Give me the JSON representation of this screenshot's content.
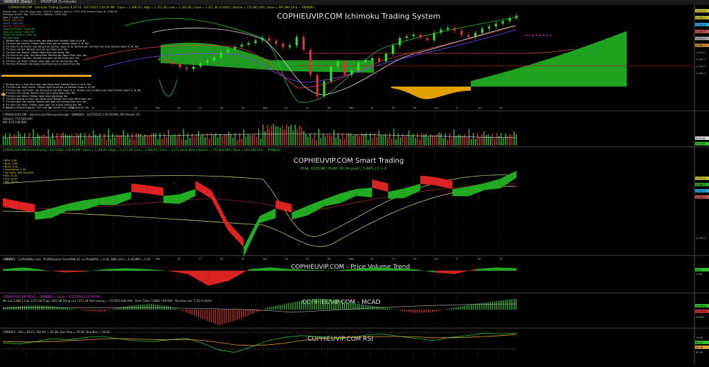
{
  "window": {
    "tabs": [
      {
        "label": "VNINDEX (Daily)",
        "active": true
      },
      {
        "label": "VN30F1M (5-minute)",
        "active": false
      }
    ]
  },
  "panels": {
    "ichimoku": {
      "watermark": "COPHIEUVIP.COM Ichimoku Trading System",
      "header": "COPHIEUVIP.COM - Ichimoku Trading System 8.29.10 - 6/27/2025 2:45:00 PM - Open = 1,368.10 | High = 1,373.28 | Low = 1,362.08 | Close = 1,371.44 (0.40%) | Volume = 715,905,440 | Value = 991,884,19 b — VNINDEX",
      "info_lines": [
        "Tenkan-sen: 1352.60  Kijun-sen: 1331.67  Senkou Span A: 1371.028  Senkou Span B: 1298.26",
        "Bollinger Band's Top: 1378.992 | Bottom: 1305.366",
        "SMA 5: 1340.193",
        "MA20: 1392.312",
        "MA50: 1268.380",
        "MA200: 1270.375",
        "Close At Chikou: 1315.48",
        "Kijun At Chikou: 1262.047",
        "Tenkan At Chikou: 1281.26",
        "Tin hieu Mua",
        "1. Tenkan-sen > hon Kijun-sen, gia dong tren Senkou Span A va B",
        "2. Tin hieu cat nhanh: Chikou Span tren gia va Senkou Span A, B: Yes",
        "3. Tin hieu tu rat manh: Gia dong tren Senkou Span A, B, Tenkan-sen va Kijun-sen tren Senkou Span A, B: Yes",
        "4. Tin hieu cat len: Tenkan-sen cat len Kijun-sen: No",
        "5. Tin hieu cat nhanh: Chikou Span tren gia dong: Yes",
        "6. Tin hieu tu tin yeu: Gia dong tren Tenkan-sen hoac Kijun-sen: Yes",
        "7. Tin hieu gan cat ben: Tenkan-sen gan cat len Kijun-sen: No",
        "8. Tin hieu cat nhan: Chikou Span gan cat len duong gia: No",
        "9. Tin hieu Pullback: Gia quay duoi Kijun-sen va dong tren: No"
      ],
      "sell_lines": [
        "1. Tenkan-sen < duoi Kijun-sen, gia dong duoi Senkou Span A va B: No",
        "2. Tin hieu cat nhan manh: Chikou Span duoi gia va Senkou Span A, B: No",
        "3. Tin hieu ban rat manh: Gia dong duoi Senkou Span A, B, Tenkan-sen va Kijun-sen duoi Senkou Span A, B: No",
        "4. Tin hieu cat xuong: Tenkan-sen cat xuong Kijun-sen: No",
        "5. Tin hieu cat nhan: Chikou Span duoi gia dong: No",
        "6. Tin hieu khang cu yeu: Gia dong duoi Tenkan-sen hoac Kijun-sen: No",
        "7. Tin hieu gan cat xuong: Tenkan-sen gan cat xuong Kijun-sen: No",
        "8. Tin hieu cat nhan: Chikou Span gan cat xuong duong gia: No",
        "9. Tin hieu Pullback nguoc: Gia vuot len tenkan-sen va dong duoi: No"
      ],
      "price_scale": [
        "1,371.9",
        "1,356.3",
        "1,331.6",
        "1,309.5",
        "1,271.0",
        "1,262.1",
        "1,240.0",
        "1,200.0",
        "1,150.0",
        "1,100.0"
      ],
      "x_labels": [
        "2025",
        "13",
        "20",
        "Feb",
        "10",
        "17",
        "24",
        "Mar",
        "10",
        "17",
        "24",
        "31",
        "Apr",
        "14",
        "21",
        "28",
        "May",
        "12",
        "19",
        "26",
        "Jun",
        "9",
        "16",
        "23"
      ]
    },
    "volume": {
      "header": "COPHIEUVIP.COM - Volume and Moving Average - VNINDEX - 6/27/2025 2:45:00 PM | MA Period: 20",
      "lines": [
        "Volume: 715,905,440",
        "MA: 876,196,896"
      ],
      "scale": [
        "876.2M",
        "715.9M"
      ]
    },
    "smart": {
      "watermark": "COPHIEUVIP.COM Smart Trading",
      "header": "COPHIEUVIP.COM Smart Trading - 6/27/2025 2:45:00 PM - Open = 1,368.10 | High = 1,373.28 | Low = 1,362.08 | Close = 1,371.44 (0.40%) | Volume = 715,905,440 | Value = 991,884,19 b — VNINDEX",
      "signal": "MUA: 1325.90 | Profit: 45.54 point | 3.44% | 1 = 0",
      "stats": [
        "* BP0: 0.00",
        "* RCI1: 0.00",
        "* BCnt: 0.00",
        "* StochValue: 0.00",
        "* VanVolve: 804,523,808",
        "* RSI: 71.41",
        "* SGI: 69.07",
        "* MFI: 78.07"
      ],
      "scale": [
        "1,371.4",
        "1,348.7",
        "1,331.6",
        "1,309.5",
        "1,200.0"
      ],
      "x_labels": [
        "2025",
        "13",
        "20",
        "Feb",
        "10",
        "17",
        "24",
        "Mar",
        "10",
        "17",
        "24",
        "31",
        "Apr",
        "14",
        "21",
        "28",
        "May",
        "12",
        "19",
        "26",
        "Jun",
        "9",
        "16",
        "23"
      ]
    },
    "pvt": {
      "watermark": "COPHIEUVIP.COM - Price Volume Trend",
      "header": "VNINDEX - CoPhieuVip.com - Price Volume Trend = 8.42, Lo Phieu Pvt = 0.00, Dau Lenh = 0.00, MA = 0.35",
      "scale": [
        "0.00",
        "-0.50"
      ]
    },
    "macd": {
      "watermark": "COPHIEUVIP.COM - MCAD",
      "header": "COPHIEUVIP.COM MCAD — VNINDEX — Daily — 6/27/2025 2:45:00 PM",
      "subheader": "Mo cua 1368.1  Cao 1373.28  Thap 1362.08  Dong cua 1371.44  Khoi Luong = 715,905,440.000 - Dem Time: 13082 / 80.000 - Dia thay doi: 5.10 (0.42%)",
      "scale": [
        "14.0000",
        "10.0000",
        "0.0000"
      ]
    },
    "rsi": {
      "watermark": "COPHIEUVIP.COM RSI",
      "header": "VNINDEX - RSI = 68.07, RSI MA = 65.28, Qua Mua = 70.00, Qua Ban = 30.00",
      "scale": [
        "70.00",
        "68.07",
        "65.28",
        "30.00"
      ]
    }
  },
  "chart_data": [
    {
      "type": "line",
      "title": "COPHIEUVIP.COM Ichimoku Trading System",
      "series": [
        {
          "name": "Close",
          "values": [
            1268,
            1262,
            1256,
            1248,
            1244,
            1250,
            1258,
            1264,
            1272,
            1283,
            1290,
            1297,
            1302,
            1306,
            1312,
            1318,
            1311,
            1304,
            1296,
            1300,
            1320,
            1290,
            1230,
            1180,
            1215,
            1250,
            1262,
            1230,
            1240,
            1260,
            1265,
            1270,
            1262,
            1280,
            1300,
            1318,
            1322,
            1326,
            1318,
            1312,
            1330,
            1338,
            1342,
            1335,
            1325,
            1320,
            1330,
            1340,
            1345,
            1352,
            1358,
            1365,
            1371
          ]
        }
      ]
    },
    {
      "type": "bar",
      "title": "Volume and Moving Average",
      "series": [
        {
          "name": "Volume",
          "values": [
            715905440
          ]
        },
        {
          "name": "MA",
          "values": [
            876196896
          ]
        }
      ]
    },
    {
      "type": "line",
      "title": "COPHIEUVIP.COM Smart Trading",
      "series": [
        {
          "name": "Smart",
          "values": [
            1268,
            1258,
            1250,
            1262,
            1275,
            1285,
            1292,
            1300,
            1310,
            1305,
            1298,
            1303,
            1318,
            1290,
            1200,
            1150,
            1240,
            1262,
            1250,
            1270,
            1288,
            1305,
            1318,
            1322,
            1310,
            1320,
            1333,
            1328,
            1318,
            1325,
            1335,
            1348,
            1371
          ]
        }
      ]
    },
    {
      "type": "bar",
      "title": "Price Volume Trend",
      "series": [
        {
          "name": "PVT",
          "values": [
            0.1,
            0.2,
            0.05,
            -0.1,
            -0.05,
            0.1,
            0.15,
            0.1,
            0.0,
            -0.2,
            -0.9,
            -0.6,
            0.1,
            0.2,
            0.1,
            0.05,
            0.0,
            0.1,
            0.2,
            0.15,
            0.1,
            -0.1,
            -0.2,
            0.1,
            0.2,
            0.15
          ]
        }
      ]
    },
    {
      "type": "bar",
      "title": "MCAD",
      "series": [
        {
          "name": "MACD",
          "values": [
            2,
            3,
            4,
            3,
            1,
            -1,
            -2,
            2,
            4,
            5,
            3,
            -2,
            -8,
            -14,
            -10,
            -4,
            2,
            5,
            8,
            10,
            9,
            6,
            4,
            2,
            -1,
            -3,
            -2,
            1,
            4,
            6,
            8,
            10
          ]
        }
      ]
    },
    {
      "type": "line",
      "title": "RSI",
      "series": [
        {
          "name": "RSI",
          "values": [
            45,
            42,
            48,
            55,
            52,
            58,
            60,
            55,
            50,
            48,
            52,
            56,
            45,
            28,
            22,
            35,
            50,
            58,
            62,
            60,
            55,
            58,
            64,
            66,
            60,
            55,
            50,
            58,
            62,
            68,
            66,
            68
          ]
        },
        {
          "name": "RSI MA",
          "values": [
            48,
            47,
            47,
            48,
            50,
            52,
            54,
            55,
            54,
            53,
            52,
            53,
            51,
            46,
            40,
            38,
            40,
            44,
            50,
            55,
            57,
            58,
            59,
            60,
            60,
            59,
            57,
            57,
            58,
            60,
            62,
            65
          ]
        }
      ]
    }
  ]
}
